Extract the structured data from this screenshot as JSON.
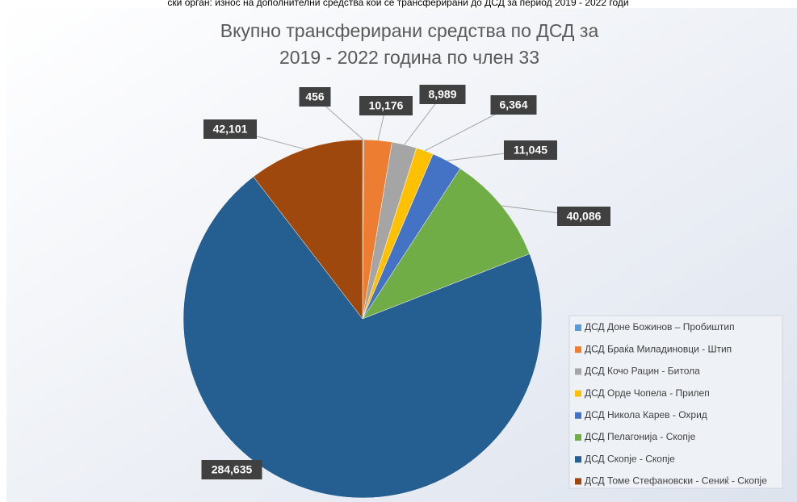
{
  "caption": "ски орган: износ на дополнителни средства кои се трансферирани до ДСД за период 2019 - 2022 годи",
  "chart_data": {
    "type": "pie",
    "title": [
      "Вкупно трансферирани средства по ДСД за",
      "2019 - 2022 година по член 33"
    ],
    "categories": [
      "ДСД Доне Божинов – Пробиштип",
      "ДСД Браќа Миладиновци - Штип",
      "ДСД Кочо Рацин - Битола",
      "ДСД Орде Чопела - Прилеп",
      "ДСД Никола Карев - Охрид",
      "ДСД Пелагонија - Скопје",
      "ДСД Скопје -  Скопје",
      "ДСД Томе Стефановски - Сениќ - Скопје"
    ],
    "values": [
      456,
      10176,
      8989,
      6364,
      11045,
      40086,
      284635,
      42101
    ],
    "value_labels": [
      "456",
      "10,176",
      "8,989",
      "6,364",
      "11,045",
      "40,086",
      "284,635",
      "42,101"
    ],
    "colors": [
      "#5b9bd5",
      "#ed7d31",
      "#a5a5a5",
      "#ffc000",
      "#4472c4",
      "#70ad47",
      "#255e91",
      "#9e480e"
    ],
    "legend": "bottom-right"
  }
}
